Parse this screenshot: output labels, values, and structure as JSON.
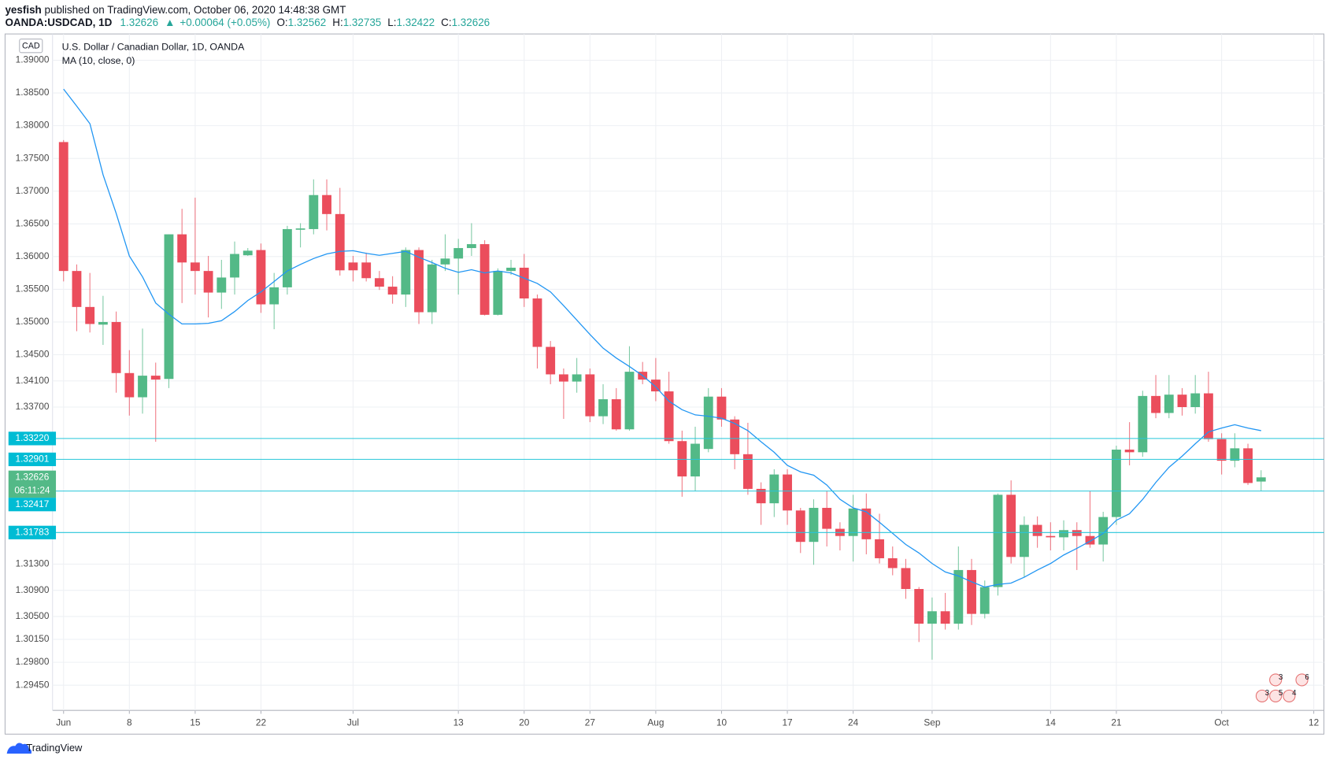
{
  "header": {
    "author": "yesfish",
    "published": "published on TradingView.com, October 06, 2020 14:48:38 GMT",
    "symbol": "OANDA:USDCAD, 1D",
    "last": "1.32626",
    "arrow": "▲",
    "change": "+0.00064 (+0.05%)",
    "ohlc": [
      {
        "label": "O:",
        "value": "1.32562"
      },
      {
        "label": "H:",
        "value": "1.32735"
      },
      {
        "label": "L:",
        "value": "1.32422"
      },
      {
        "label": "C:",
        "value": "1.32626"
      }
    ]
  },
  "chart_data": {
    "type": "candlestick",
    "title": "U.S. Dollar / Canadian Dollar, 1D, OANDA",
    "currency": "CAD",
    "categories": [
      "Jun",
      null,
      null,
      null,
      null,
      "8",
      null,
      null,
      null,
      null,
      "15",
      null,
      null,
      null,
      null,
      "22",
      null,
      null,
      null,
      null,
      null,
      null,
      "Jul",
      null,
      null,
      null,
      null,
      null,
      null,
      null,
      "13",
      null,
      null,
      null,
      null,
      "20",
      null,
      null,
      null,
      null,
      "27",
      null,
      null,
      null,
      null,
      "Aug",
      null,
      null,
      null,
      null,
      "10",
      null,
      null,
      null,
      null,
      "17",
      null,
      null,
      null,
      null,
      "24",
      null,
      null,
      null,
      null,
      null,
      "Sep",
      null,
      null,
      null,
      null,
      null,
      null,
      null,
      null,
      "14",
      null,
      null,
      null,
      null,
      "21",
      null,
      null,
      null,
      null,
      null,
      null,
      null,
      "Oct",
      null,
      null,
      null,
      null,
      null,
      null,
      "12"
    ],
    "series": [
      {
        "up_color": "#53b987",
        "down_color": "#eb4d5c",
        "open": [
          1.3775,
          1.3578,
          1.3523,
          1.3496,
          1.35,
          1.3422,
          1.3385,
          1.3418,
          1.3413,
          1.3634,
          1.3591,
          1.3578,
          1.3545,
          1.3568,
          1.3602,
          1.361,
          1.3527,
          1.3553,
          1.3641,
          1.3642,
          1.3694,
          1.3665,
          1.3591,
          1.3591,
          1.3567,
          1.3554,
          1.3542,
          1.361,
          1.3515,
          1.3588,
          1.3597,
          1.3613,
          1.3619,
          1.3511,
          1.3578,
          1.3583,
          1.3536,
          1.3462,
          1.342,
          1.3409,
          1.342,
          1.3356,
          1.3382,
          1.3336,
          1.3424,
          1.3412,
          1.3394,
          1.3318,
          1.3264,
          1.3306,
          1.3386,
          1.3351,
          1.3298,
          1.3245,
          1.3223,
          1.3267,
          1.3212,
          1.3164,
          1.3216,
          1.3184,
          1.3173,
          1.3215,
          1.3168,
          1.3139,
          1.3124,
          1.3092,
          1.3039,
          1.3058,
          1.3039,
          1.3121,
          1.3054,
          1.3095,
          1.3236,
          1.3141,
          1.319,
          1.3173,
          1.3171,
          1.3182,
          1.3173,
          1.316,
          1.3202,
          1.3305,
          1.3301,
          1.3387,
          1.3361,
          1.3389,
          1.337,
          1.3391,
          1.3321,
          1.3288,
          1.3307,
          1.32562,
          null,
          null,
          null,
          null
        ],
        "high": [
          1.3778,
          1.3588,
          1.3575,
          1.354,
          1.3516,
          1.3457,
          1.349,
          1.3438,
          1.3634,
          1.3673,
          1.369,
          1.3601,
          1.3595,
          1.3623,
          1.3613,
          1.362,
          1.3575,
          1.3647,
          1.3651,
          1.3718,
          1.3718,
          1.3705,
          1.3601,
          1.3606,
          1.3578,
          1.357,
          1.3614,
          1.3614,
          1.3595,
          1.3634,
          1.3627,
          1.3651,
          1.3625,
          1.3582,
          1.3595,
          1.3604,
          1.3542,
          1.3471,
          1.3429,
          1.3445,
          1.3429,
          1.3405,
          1.3399,
          1.3463,
          1.3439,
          1.3445,
          1.3424,
          1.3334,
          1.334,
          1.3399,
          1.3399,
          1.3356,
          1.3346,
          1.3255,
          1.3275,
          1.3275,
          1.3216,
          1.3229,
          1.3242,
          1.3194,
          1.3236,
          1.3238,
          1.3207,
          1.3157,
          1.3138,
          1.3095,
          1.3079,
          1.3086,
          1.3157,
          1.3138,
          1.3105,
          1.3238,
          1.3258,
          1.3203,
          1.3203,
          1.3194,
          1.3197,
          1.3194,
          1.3242,
          1.321,
          1.3311,
          1.3347,
          1.3395,
          1.3419,
          1.3419,
          1.3399,
          1.3419,
          1.3424,
          1.333,
          1.333,
          1.3314,
          1.32735,
          null,
          null,
          null,
          null
        ],
        "low": [
          1.3562,
          1.3486,
          1.3484,
          1.3465,
          1.3392,
          1.3357,
          1.336,
          1.3317,
          1.3399,
          1.3529,
          1.3542,
          1.3507,
          1.352,
          1.3542,
          1.3601,
          1.3514,
          1.3489,
          1.3542,
          1.3614,
          1.3634,
          1.364,
          1.3571,
          1.3562,
          1.3562,
          1.3549,
          1.3528,
          1.3523,
          1.3497,
          1.3497,
          1.3578,
          1.3542,
          1.3601,
          1.351,
          1.351,
          1.3572,
          1.3523,
          1.3429,
          1.3405,
          1.3352,
          1.3392,
          1.3347,
          1.3344,
          1.3334,
          1.3334,
          1.3405,
          1.3379,
          1.3314,
          1.3233,
          1.3242,
          1.3301,
          1.334,
          1.3275,
          1.3236,
          1.319,
          1.3202,
          1.319,
          1.3147,
          1.3129,
          1.3157,
          1.3151,
          1.3134,
          1.3145,
          1.3131,
          1.3113,
          1.3077,
          1.3011,
          1.2984,
          1.303,
          1.303,
          1.3037,
          1.3047,
          1.3082,
          1.3131,
          1.311,
          1.3155,
          1.3151,
          1.3151,
          1.3121,
          1.3155,
          1.3134,
          1.319,
          1.3281,
          1.3294,
          1.3353,
          1.3353,
          1.3357,
          1.336,
          1.3317,
          1.3267,
          1.3278,
          1.3251,
          1.32422,
          null,
          null,
          null,
          null
        ],
        "close": [
          1.3578,
          1.3523,
          1.3497,
          1.35,
          1.3422,
          1.3385,
          1.3418,
          1.3412,
          1.3634,
          1.3591,
          1.3578,
          1.3545,
          1.3568,
          1.3604,
          1.3609,
          1.3527,
          1.3553,
          1.3642,
          1.3643,
          1.3694,
          1.3665,
          1.3579,
          1.3579,
          1.3567,
          1.3554,
          1.3542,
          1.361,
          1.3515,
          1.3588,
          1.3597,
          1.3613,
          1.3619,
          1.3511,
          1.3578,
          1.3583,
          1.3536,
          1.3462,
          1.342,
          1.3409,
          1.342,
          1.3356,
          1.3382,
          1.3336,
          1.3424,
          1.3412,
          1.3394,
          1.3318,
          1.3264,
          1.3314,
          1.3386,
          1.3351,
          1.3298,
          1.3245,
          1.3223,
          1.3267,
          1.3212,
          1.3164,
          1.3216,
          1.3184,
          1.3173,
          1.3215,
          1.3168,
          1.3139,
          1.3124,
          1.3092,
          1.3039,
          1.3058,
          1.3039,
          1.3121,
          1.3054,
          1.3095,
          1.3236,
          1.3141,
          1.319,
          1.3173,
          1.3171,
          1.3182,
          1.3173,
          1.316,
          1.3202,
          1.3305,
          1.3301,
          1.3387,
          1.3361,
          1.3389,
          1.337,
          1.3391,
          1.3321,
          1.3288,
          1.3307,
          1.3254,
          1.32626,
          null,
          null,
          null,
          null
        ]
      },
      {
        "name": "MA (10, close, 0)",
        "type": "line",
        "color": "#2196f3",
        "values": [
          1.3856,
          1.383,
          1.3803,
          1.3725,
          1.3666,
          1.3601,
          1.3569,
          1.3529,
          1.3512,
          1.3497,
          1.3497,
          1.3498,
          1.3502,
          1.3516,
          1.3533,
          1.3546,
          1.3562,
          1.3578,
          1.3588,
          1.3597,
          1.3604,
          1.3608,
          1.3609,
          1.3605,
          1.3602,
          1.3605,
          1.3608,
          1.3599,
          1.3591,
          1.3582,
          1.3576,
          1.358,
          1.3575,
          1.3578,
          1.3575,
          1.3567,
          1.3559,
          1.3546,
          1.3525,
          1.3503,
          1.3481,
          1.346,
          1.3445,
          1.3432,
          1.3418,
          1.3401,
          1.3379,
          1.3366,
          1.3358,
          1.3356,
          1.3353,
          1.3345,
          1.3334,
          1.3317,
          1.3301,
          1.3281,
          1.3271,
          1.3266,
          1.3251,
          1.3229,
          1.3216,
          1.321,
          1.3194,
          1.3177,
          1.316,
          1.3147,
          1.3131,
          1.3118,
          1.3112,
          1.3103,
          1.3095,
          1.3099,
          1.3101,
          1.311,
          1.3121,
          1.3131,
          1.3144,
          1.3154,
          1.3165,
          1.3177,
          1.3197,
          1.3207,
          1.3229,
          1.3255,
          1.3278,
          1.3295,
          1.3314,
          1.3332,
          1.3338,
          1.3343,
          1.3338,
          1.3334,
          null,
          null,
          null,
          null
        ]
      }
    ],
    "price_lines": [
      {
        "value": 1.3322,
        "label": "1.33220",
        "color": "#26c6da"
      },
      {
        "value": 1.32901,
        "label": "1.32901",
        "color": "#26c6da"
      },
      {
        "value": 1.32417,
        "label": "1.32417",
        "color": "#26c6da"
      },
      {
        "value": 1.31783,
        "label": "1.31783",
        "color": "#26c6da"
      }
    ],
    "current_price": {
      "value": 1.32626,
      "label": "1.32626",
      "countdown": "06:11:24",
      "color": "#53b987"
    },
    "ylim": [
      1.29065,
      1.39402
    ],
    "yticks": [
      {
        "value": 1.39,
        "label": "1.39000"
      },
      {
        "value": 1.385,
        "label": "1.38500"
      },
      {
        "value": 1.38,
        "label": "1.38000"
      },
      {
        "value": 1.375,
        "label": "1.37500"
      },
      {
        "value": 1.37,
        "label": "1.37000"
      },
      {
        "value": 1.365,
        "label": "1.36500"
      },
      {
        "value": 1.36,
        "label": "1.36000"
      },
      {
        "value": 1.355,
        "label": "1.35500"
      },
      {
        "value": 1.35,
        "label": "1.35000"
      },
      {
        "value": 1.345,
        "label": "1.34500"
      },
      {
        "value": 1.341,
        "label": "1.34100"
      },
      {
        "value": 1.337,
        "label": "1.33700"
      },
      {
        "value": 1.313,
        "label": "1.31300"
      },
      {
        "value": 1.309,
        "label": "1.30900"
      },
      {
        "value": 1.305,
        "label": "1.30500"
      },
      {
        "value": 1.3015,
        "label": "1.30150"
      },
      {
        "value": 1.298,
        "label": "1.29800"
      },
      {
        "value": 1.2945,
        "label": "1.29450"
      }
    ],
    "grid": true,
    "events": [
      "3",
      "6",
      "3",
      "5",
      "4"
    ]
  },
  "footer": {
    "brand": "TradingView"
  }
}
